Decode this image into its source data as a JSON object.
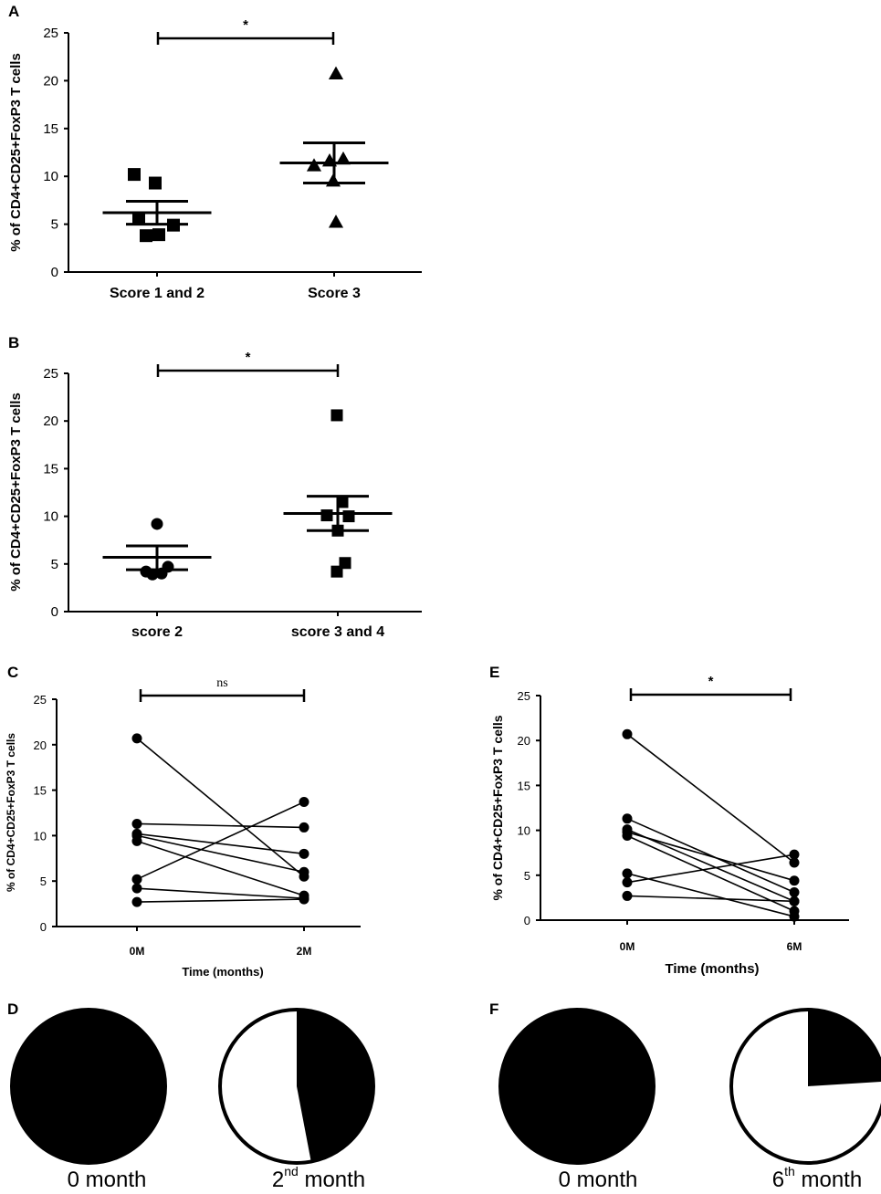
{
  "chart_data": [
    {
      "panel": "A",
      "type": "scatter",
      "ylabel": "% of CD4+CD25+FoxP3 T cells",
      "ylim": [
        0,
        25
      ],
      "yticks": [
        0,
        5,
        10,
        15,
        20,
        25
      ],
      "categories": [
        "Score 1 and 2",
        "Score 3"
      ],
      "markers": [
        "square",
        "triangle"
      ],
      "series": [
        {
          "name": "Score 1 and 2",
          "values": [
            10.2,
            9.3,
            5.6,
            4.9,
            3.9,
            3.8
          ],
          "offsets": [
            -0.25,
            -0.02,
            -0.2,
            0.18,
            0.02,
            -0.12
          ],
          "mean": 6.2,
          "sem_upper": 7.4,
          "sem_lower": 5.0
        },
        {
          "name": "Score 3",
          "values": [
            20.7,
            11.8,
            11.6,
            11.1,
            9.5,
            5.2
          ],
          "offsets": [
            0.02,
            0.1,
            -0.05,
            -0.22,
            -0.01,
            0.02
          ],
          "mean": 11.4,
          "sem_upper": 13.5,
          "sem_lower": 9.3
        }
      ],
      "significance": "*"
    },
    {
      "panel": "B",
      "type": "scatter",
      "ylabel": "% of CD4+CD25+FoxP3 T cells",
      "ylim": [
        0,
        25
      ],
      "yticks": [
        0,
        5,
        10,
        15,
        20,
        25
      ],
      "categories": [
        "score 2",
        "score 3 and 4"
      ],
      "markers": [
        "circle",
        "square"
      ],
      "series": [
        {
          "name": "score 2",
          "values": [
            9.2,
            4.7,
            4.2,
            4.0,
            3.9
          ],
          "offsets": [
            0.0,
            0.12,
            -0.12,
            0.05,
            -0.05
          ],
          "mean": 5.7,
          "sem_upper": 6.9,
          "sem_lower": 4.4
        },
        {
          "name": "score 3 and 4",
          "values": [
            20.6,
            11.5,
            10.1,
            10.0,
            8.5,
            5.1,
            4.2
          ],
          "offsets": [
            -0.01,
            0.05,
            -0.12,
            0.12,
            0.0,
            0.08,
            -0.01
          ],
          "mean": 10.3,
          "sem_upper": 12.1,
          "sem_lower": 8.5
        }
      ],
      "significance": "*"
    },
    {
      "panel": "C",
      "type": "line",
      "ylabel": "% of CD4+CD25+FoxP3 T cells",
      "xlabel": "Time (months)",
      "ylim": [
        0,
        25
      ],
      "yticks": [
        0,
        5,
        10,
        15,
        20,
        25
      ],
      "categories": [
        "0M",
        "2M"
      ],
      "pairs": [
        [
          20.7,
          5.5
        ],
        [
          11.3,
          10.9
        ],
        [
          10.2,
          8.0
        ],
        [
          10.0,
          6.0
        ],
        [
          9.4,
          3.4
        ],
        [
          5.2,
          13.7
        ],
        [
          4.2,
          3.1
        ],
        [
          2.7,
          3.0
        ]
      ],
      "significance": "ns"
    },
    {
      "panel": "E",
      "type": "line",
      "ylabel": "% of CD4+CD25+FoxP3 T cells",
      "xlabel": "Time (months)",
      "ylim": [
        0,
        25
      ],
      "yticks": [
        0,
        5,
        10,
        15,
        20,
        25
      ],
      "categories": [
        "0M",
        "6M"
      ],
      "pairs": [
        [
          20.7,
          6.4
        ],
        [
          11.3,
          3.1
        ],
        [
          10.1,
          2.1
        ],
        [
          9.8,
          4.4
        ],
        [
          9.4,
          1.0
        ],
        [
          5.2,
          0.4
        ],
        [
          4.2,
          7.3
        ],
        [
          2.7,
          2.1
        ]
      ],
      "significance": "*"
    },
    {
      "panel": "D",
      "type": "pie",
      "charts": [
        {
          "caption": "0 month",
          "filled_fraction": 1.0
        },
        {
          "caption_base": "2",
          "caption_sup": "nd",
          "caption_rest": " month",
          "filled_fraction": 0.47
        }
      ]
    },
    {
      "panel": "F",
      "type": "pie",
      "charts": [
        {
          "caption": "0 month",
          "filled_fraction": 1.0
        },
        {
          "caption_base": "6",
          "caption_sup": "th",
          "caption_rest": " month",
          "filled_fraction": 0.24
        }
      ]
    }
  ]
}
